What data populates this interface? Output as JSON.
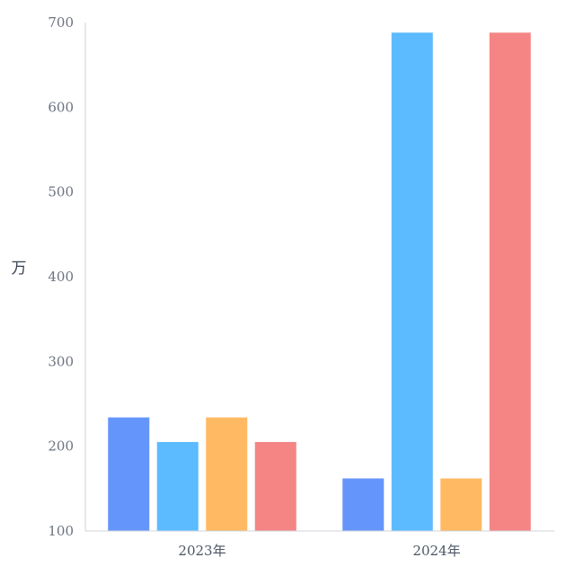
{
  "chart_data": {
    "type": "bar",
    "categories": [
      "2023年",
      "2024年"
    ],
    "series": [
      {
        "color": "#6495fa",
        "values": [
          234,
          162
        ]
      },
      {
        "color": "#5cbbff",
        "values": [
          205,
          688
        ]
      },
      {
        "color": "#ffb962",
        "values": [
          234,
          162
        ]
      },
      {
        "color": "#f58585",
        "values": [
          205,
          688
        ]
      }
    ],
    "ylabel": "万",
    "xlabel": "",
    "title": "",
    "ylim": [
      100,
      700
    ],
    "yticks": [
      100,
      200,
      300,
      400,
      500,
      600,
      700
    ],
    "ytick_labels": [
      "100",
      "200",
      "300",
      "400",
      "500",
      "600",
      "700"
    ],
    "grid": false,
    "axis_color": "#cfd3d8"
  }
}
